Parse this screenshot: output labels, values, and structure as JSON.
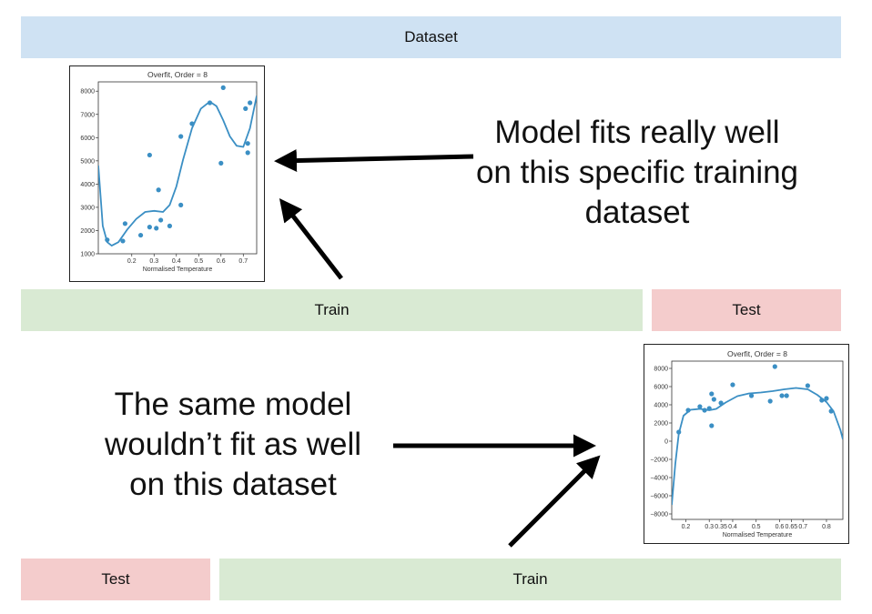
{
  "bars": {
    "dataset": "Dataset",
    "train_top": "Train",
    "test_top": "Test",
    "test_bottom": "Test",
    "train_bottom": "Train"
  },
  "captions": {
    "top": "Model fits really well on this specific training dataset",
    "bottom": "The same model wouldn’t fit as well on this dataset"
  },
  "colors": {
    "dataset_bar": "#cfe2f3",
    "train_bar": "#d9ead3",
    "test_bar": "#f4cccc",
    "series": "#3b8fc4",
    "arrow": "#000000"
  },
  "chart_data": [
    {
      "type": "scatter",
      "title": "Overfit, Order = 8",
      "xlabel": "Normalised Temperature",
      "ylabel": "",
      "xlim": [
        0.05,
        0.76
      ],
      "ylim": [
        1000,
        8400
      ],
      "xticks": [
        0.2,
        0.3,
        0.4,
        0.5,
        0.6,
        0.7
      ],
      "xtick_labels": [
        "0.2",
        "0.3",
        "0.4",
        "0.5",
        "0.6",
        "0.7"
      ],
      "yticks": [
        1000,
        2000,
        3000,
        4000,
        5000,
        6000,
        7000,
        8000
      ],
      "ytick_labels": [
        "1000",
        "2000",
        "3000",
        "4000",
        "5000",
        "6000",
        "7000",
        "8000"
      ],
      "points": [
        [
          0.09,
          1600
        ],
        [
          0.16,
          1550
        ],
        [
          0.17,
          2300
        ],
        [
          0.24,
          1800
        ],
        [
          0.28,
          2150
        ],
        [
          0.28,
          5250
        ],
        [
          0.31,
          2100
        ],
        [
          0.32,
          3750
        ],
        [
          0.33,
          2450
        ],
        [
          0.37,
          2200
        ],
        [
          0.42,
          3100
        ],
        [
          0.42,
          6050
        ],
        [
          0.47,
          6600
        ],
        [
          0.55,
          7500
        ],
        [
          0.6,
          4900
        ],
        [
          0.61,
          8150
        ],
        [
          0.71,
          7250
        ],
        [
          0.72,
          5750
        ],
        [
          0.72,
          5350
        ],
        [
          0.73,
          7500
        ]
      ],
      "curve": [
        [
          0.05,
          4800
        ],
        [
          0.07,
          2200
        ],
        [
          0.09,
          1500
        ],
        [
          0.11,
          1350
        ],
        [
          0.14,
          1500
        ],
        [
          0.18,
          2050
        ],
        [
          0.22,
          2500
        ],
        [
          0.26,
          2800
        ],
        [
          0.3,
          2850
        ],
        [
          0.34,
          2800
        ],
        [
          0.37,
          3100
        ],
        [
          0.4,
          3900
        ],
        [
          0.43,
          5050
        ],
        [
          0.47,
          6400
        ],
        [
          0.51,
          7250
        ],
        [
          0.55,
          7550
        ],
        [
          0.58,
          7350
        ],
        [
          0.61,
          6750
        ],
        [
          0.64,
          6050
        ],
        [
          0.67,
          5650
        ],
        [
          0.7,
          5600
        ],
        [
          0.73,
          6400
        ],
        [
          0.76,
          7800
        ]
      ]
    },
    {
      "type": "scatter",
      "title": "Overfit, Order = 8",
      "xlabel": "Normalised Temperature",
      "ylabel": "",
      "xlim": [
        0.14,
        0.87
      ],
      "ylim": [
        -8600,
        8800
      ],
      "xticks": [
        0.2,
        0.3,
        0.35,
        0.4,
        0.5,
        0.6,
        0.65,
        0.7,
        0.8
      ],
      "xtick_labels": [
        "0.2",
        "0.3",
        "0.35",
        "0.4",
        "0.5",
        "0.6",
        "0.65",
        "0.7",
        "0.8"
      ],
      "yticks": [
        -8000,
        -6000,
        -4000,
        -2000,
        0,
        2000,
        4000,
        6000,
        8000
      ],
      "ytick_labels": [
        "−8000",
        "−6000",
        "−4000",
        "−2000",
        "0",
        "2000",
        "4000",
        "6000",
        "8000"
      ],
      "points": [
        [
          0.17,
          1000
        ],
        [
          0.21,
          3400
        ],
        [
          0.26,
          3800
        ],
        [
          0.28,
          3400
        ],
        [
          0.3,
          3600
        ],
        [
          0.31,
          5200
        ],
        [
          0.31,
          1700
        ],
        [
          0.32,
          4600
        ],
        [
          0.35,
          4200
        ],
        [
          0.4,
          6200
        ],
        [
          0.48,
          5000
        ],
        [
          0.56,
          4400
        ],
        [
          0.58,
          8200
        ],
        [
          0.61,
          5000
        ],
        [
          0.63,
          5000
        ],
        [
          0.72,
          6100
        ],
        [
          0.78,
          4500
        ],
        [
          0.8,
          4700
        ],
        [
          0.82,
          3300
        ]
      ],
      "curve": [
        [
          0.14,
          -7000
        ],
        [
          0.155,
          -2500
        ],
        [
          0.17,
          800
        ],
        [
          0.19,
          2800
        ],
        [
          0.22,
          3450
        ],
        [
          0.26,
          3550
        ],
        [
          0.3,
          3400
        ],
        [
          0.33,
          3550
        ],
        [
          0.37,
          4250
        ],
        [
          0.42,
          4950
        ],
        [
          0.47,
          5250
        ],
        [
          0.52,
          5350
        ],
        [
          0.57,
          5500
        ],
        [
          0.62,
          5700
        ],
        [
          0.67,
          5850
        ],
        [
          0.72,
          5700
        ],
        [
          0.76,
          5100
        ],
        [
          0.8,
          4300
        ],
        [
          0.83,
          3300
        ],
        [
          0.86,
          1200
        ],
        [
          0.87,
          200
        ]
      ]
    }
  ]
}
